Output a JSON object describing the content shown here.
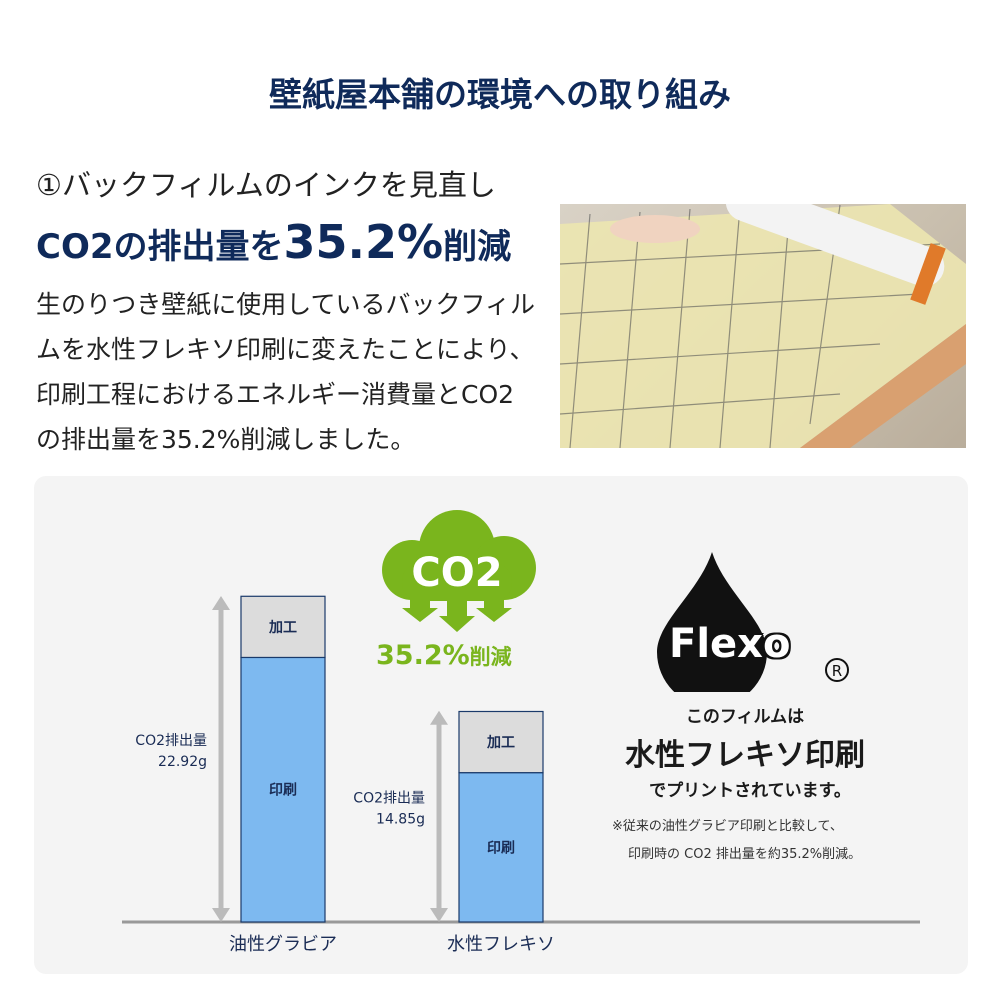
{
  "header": {
    "title": "壁紙屋本舗の環境への取り組み"
  },
  "section": {
    "subtitle": "①バックフィルムのインクを見直し",
    "headline_prefix": "CO2の排出量を",
    "headline_value": "35.2%",
    "headline_suffix": "削減",
    "body": "生のりつき壁紙に使用しているバックフィルムを水性フレキソ印刷に変えたことにより、印刷工程におけるエネルギー消費量とCO2の排出量を35.2%削減しました。"
  },
  "badge": {
    "cloud_text": "CO2",
    "reduction_value": "35.2%",
    "reduction_suffix": "削減"
  },
  "flexo": {
    "logo_text": "Flexo",
    "registered": "®",
    "line1": "このフィルムは",
    "line2": "水性フレキソ印刷",
    "line3": "でプリントされています。",
    "note1": "※従来の油性グラビア印刷と比較して、",
    "note2": "印刷時の CO2 排出量を約35.2%削減。"
  },
  "colors": {
    "navy": "#0f2a5a",
    "green": "#7ab51d",
    "print_bar": "#7db9f0",
    "process_bar": "#dcdcdc"
  },
  "chart_data": {
    "type": "bar",
    "stacked": true,
    "categories": [
      "油性グラビア",
      "水性フレキソ"
    ],
    "series": [
      {
        "name": "印刷",
        "values": [
          18.6,
          10.5
        ]
      },
      {
        "name": "加工",
        "values": [
          4.3,
          4.3
        ]
      }
    ],
    "totals": [
      22.92,
      14.85
    ],
    "total_labels": [
      [
        "CO2排出量",
        "22.92g"
      ],
      [
        "CO2排出量",
        "14.85g"
      ]
    ],
    "ylim": [
      0,
      22.92
    ],
    "grid": false
  }
}
